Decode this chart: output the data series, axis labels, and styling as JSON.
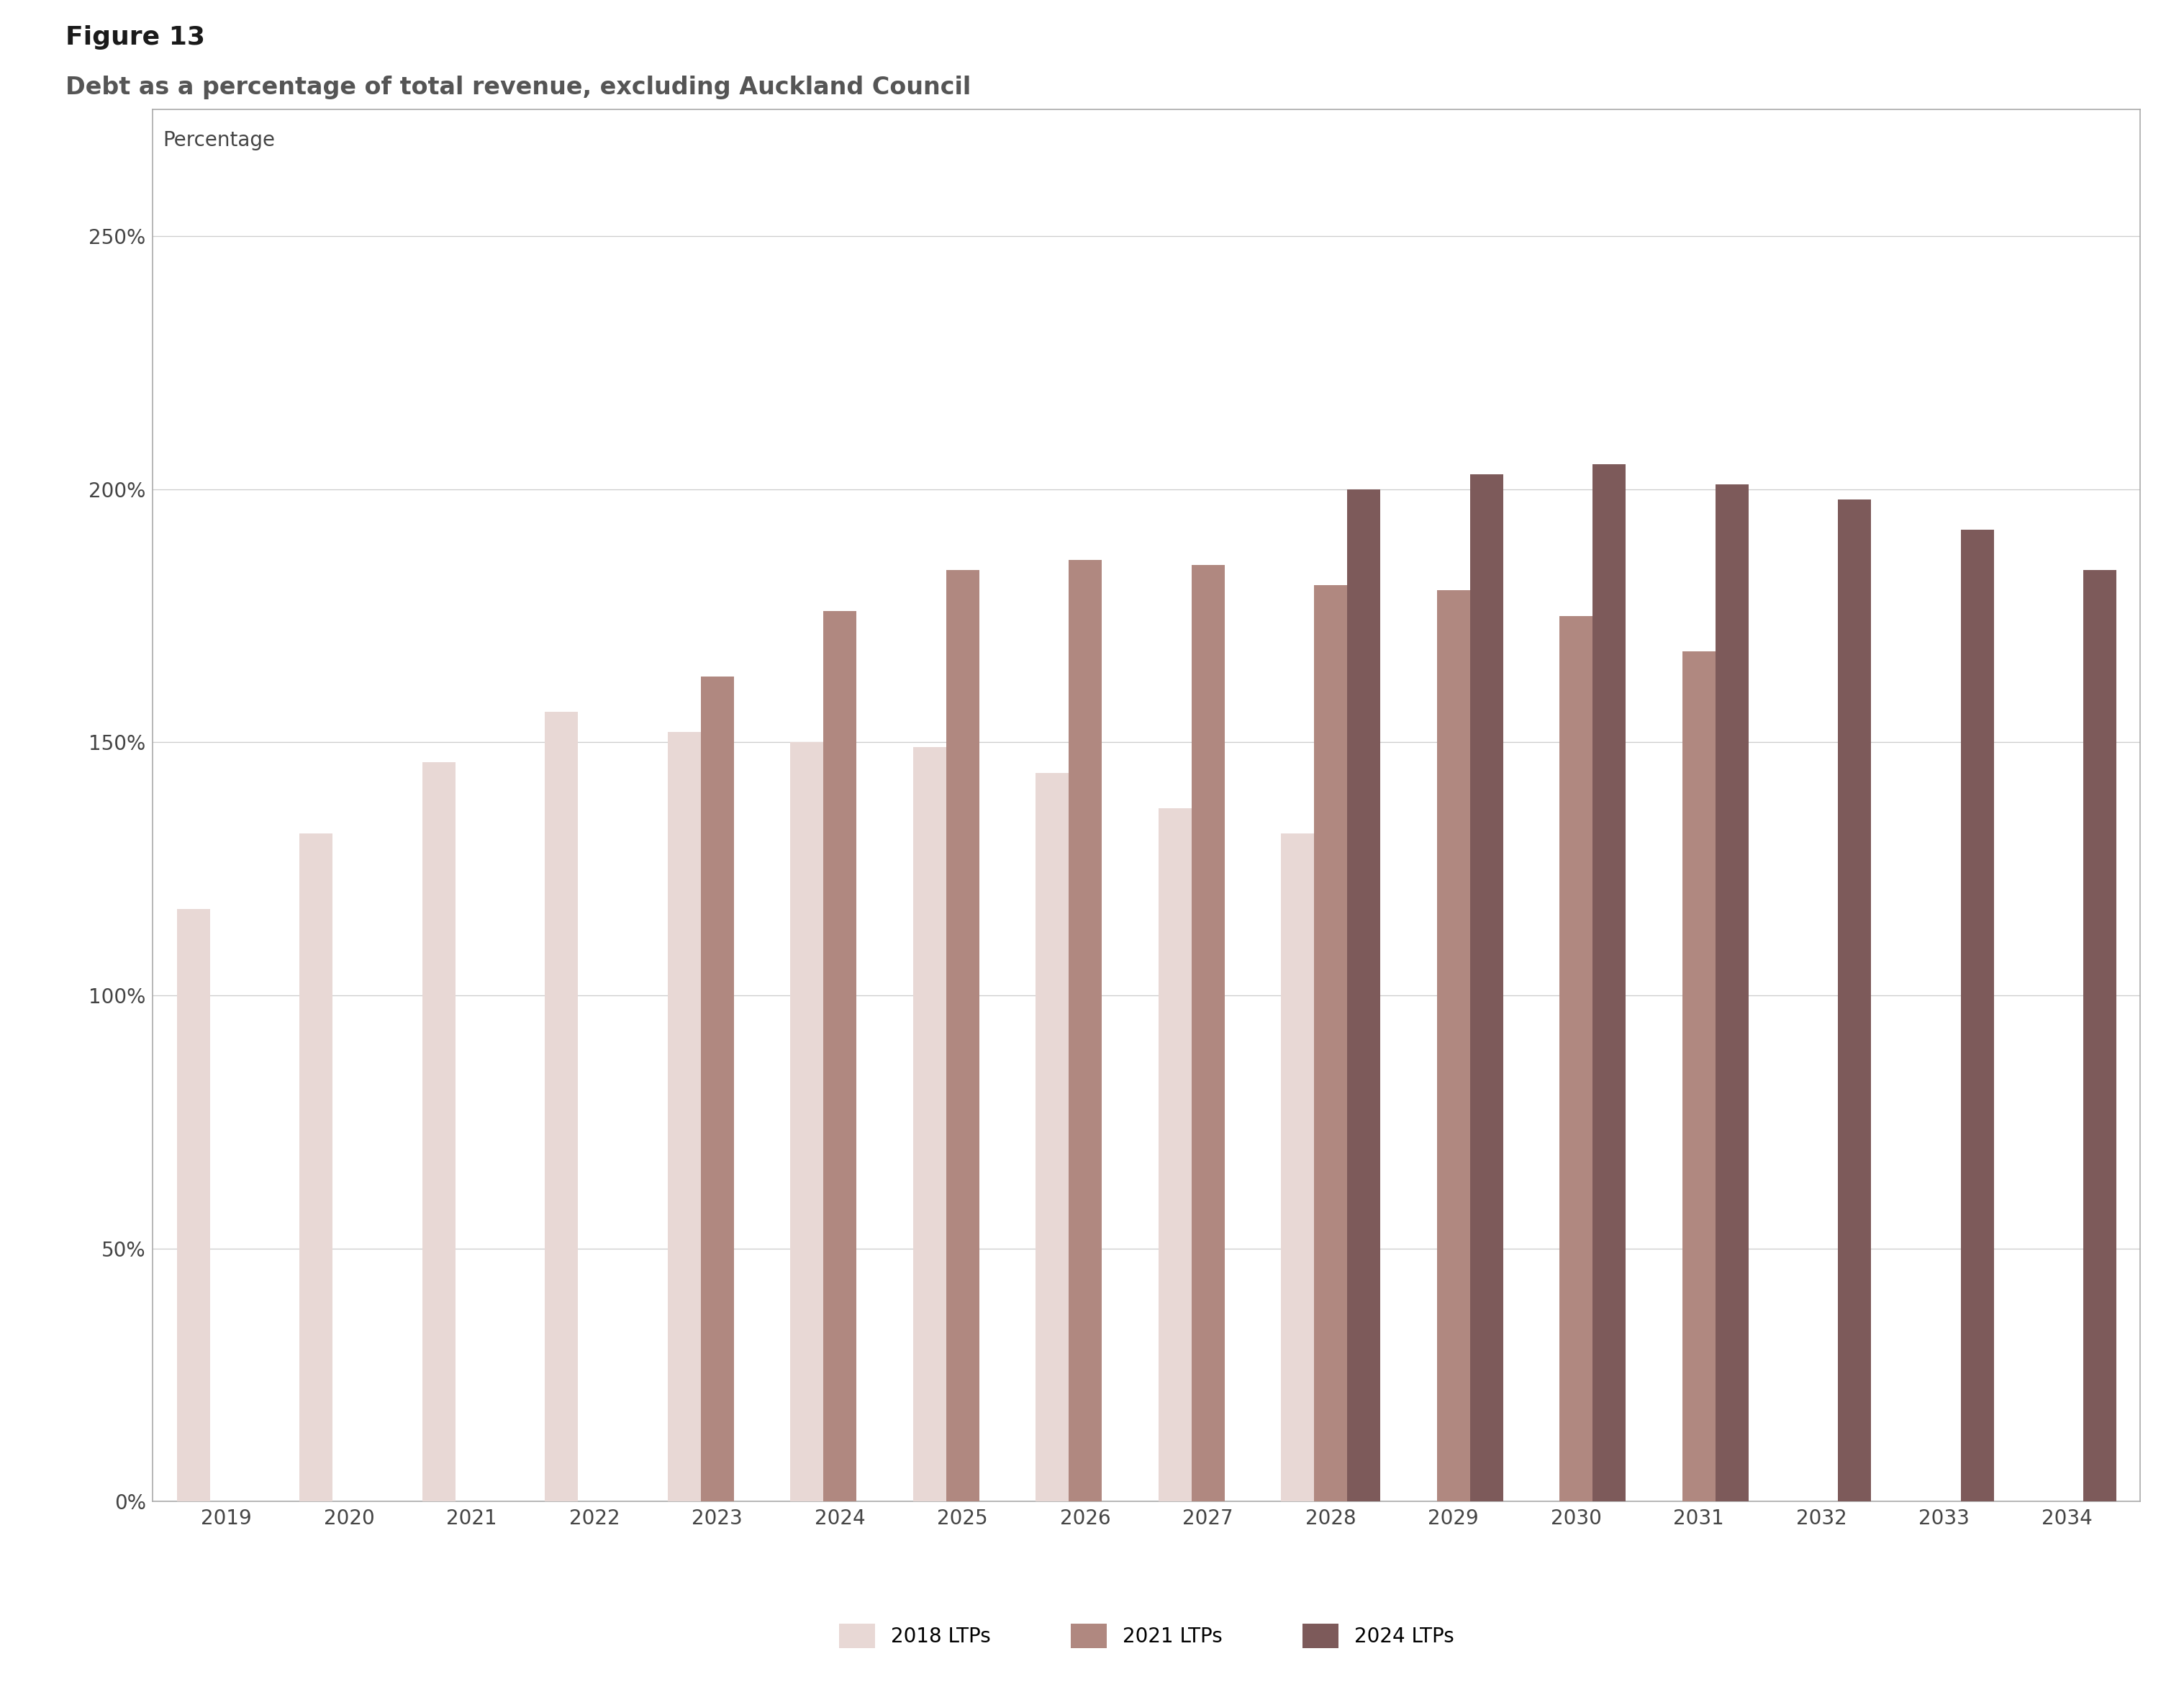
{
  "title_line1": "Figure 13",
  "title_line2": "Debt as a percentage of total revenue, excluding Auckland Council",
  "ylabel": "Percentage",
  "yticks": [
    0,
    50,
    100,
    150,
    200,
    250
  ],
  "ytick_labels": [
    "0%",
    "50%",
    "100%",
    "150%",
    "200%",
    "250%"
  ],
  "ylim": [
    0,
    275
  ],
  "years": [
    2019,
    2020,
    2021,
    2022,
    2023,
    2024,
    2025,
    2026,
    2027,
    2028,
    2029,
    2030,
    2031,
    2032,
    2033,
    2034
  ],
  "series": {
    "2018 LTPs": {
      "color": "#e8d8d5",
      "values": [
        117,
        132,
        146,
        156,
        152,
        150,
        149,
        144,
        137,
        132,
        null,
        null,
        null,
        null,
        null,
        null
      ]
    },
    "2021 LTPs": {
      "color": "#b08880",
      "values": [
        null,
        null,
        null,
        null,
        163,
        176,
        184,
        186,
        185,
        181,
        180,
        175,
        168,
        null,
        null,
        null
      ]
    },
    "2024 LTPs": {
      "color": "#7d5a5a",
      "values": [
        null,
        null,
        null,
        null,
        null,
        null,
        null,
        null,
        null,
        200,
        203,
        205,
        201,
        198,
        192,
        184
      ]
    }
  },
  "legend_entries": [
    "2018 LTPs",
    "2021 LTPs",
    "2024 LTPs"
  ],
  "bar_width": 0.27,
  "background_color": "#ffffff",
  "plot_bg_color": "#ffffff",
  "grid_color": "#cccccc",
  "border_color": "#aaaaaa",
  "title1_fontsize": 26,
  "title2_fontsize": 24,
  "axis_label_fontsize": 20,
  "tick_fontsize": 20,
  "legend_fontsize": 20
}
